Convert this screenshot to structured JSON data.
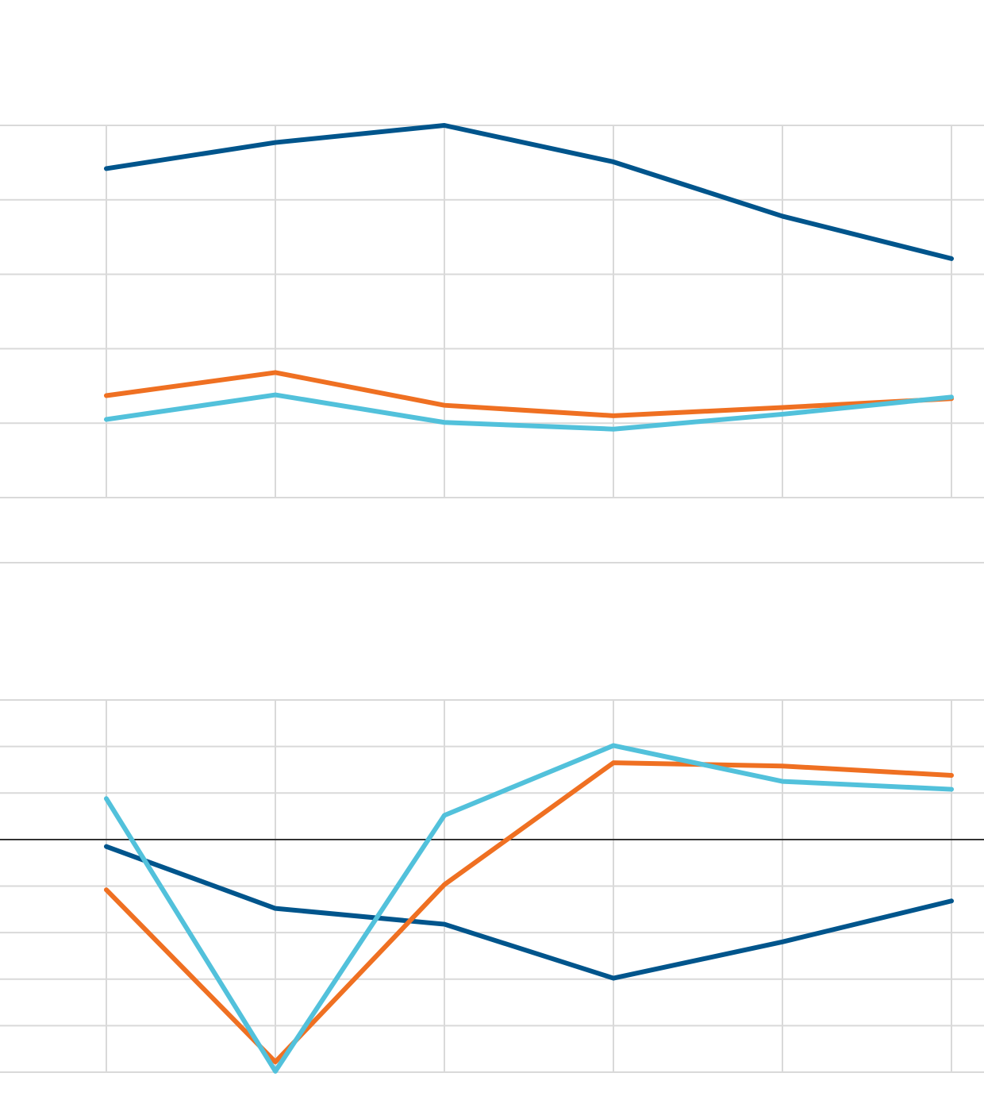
{
  "chart_data": [
    {
      "type": "line",
      "title": "",
      "xlabel": "",
      "ylabel": "",
      "x": [
        0,
        1,
        2,
        3,
        4,
        5
      ],
      "ylim": [
        0,
        5
      ],
      "y_gridlines": [
        0,
        1,
        2,
        3,
        4,
        5
      ],
      "grid": true,
      "legend": "none",
      "series": [
        {
          "color": "#00558c",
          "values": [
            4.42,
            4.77,
            5.0,
            4.51,
            3.78,
            3.21
          ]
        },
        {
          "color": "#ef7022",
          "values": [
            1.37,
            1.68,
            1.24,
            1.1,
            1.21,
            1.33
          ]
        },
        {
          "color": "#52c1db",
          "values": [
            1.05,
            1.38,
            1.01,
            0.92,
            1.12,
            1.35
          ]
        }
      ]
    },
    {
      "type": "line",
      "title": "",
      "xlabel": "",
      "ylabel": "",
      "x": [
        0,
        1,
        2,
        3,
        4,
        5
      ],
      "ylim": [
        -5,
        3
      ],
      "y_gridlines": [
        -5,
        -4,
        -3,
        -2,
        -1,
        0,
        1,
        2,
        3
      ],
      "zero_line": 0,
      "grid": true,
      "legend": "none",
      "series": [
        {
          "color": "#00558c",
          "values": [
            -0.15,
            -1.48,
            -1.82,
            -2.98,
            -2.2,
            -1.32
          ]
        },
        {
          "color": "#ef7022",
          "values": [
            -1.08,
            -4.78,
            -0.97,
            1.65,
            1.58,
            1.38
          ]
        },
        {
          "color": "#52c1db",
          "values": [
            0.88,
            -4.98,
            0.52,
            2.02,
            1.25,
            1.08
          ]
        }
      ]
    }
  ],
  "colors": {
    "grid": "#d9d9d9",
    "zero_line": "#000000"
  }
}
